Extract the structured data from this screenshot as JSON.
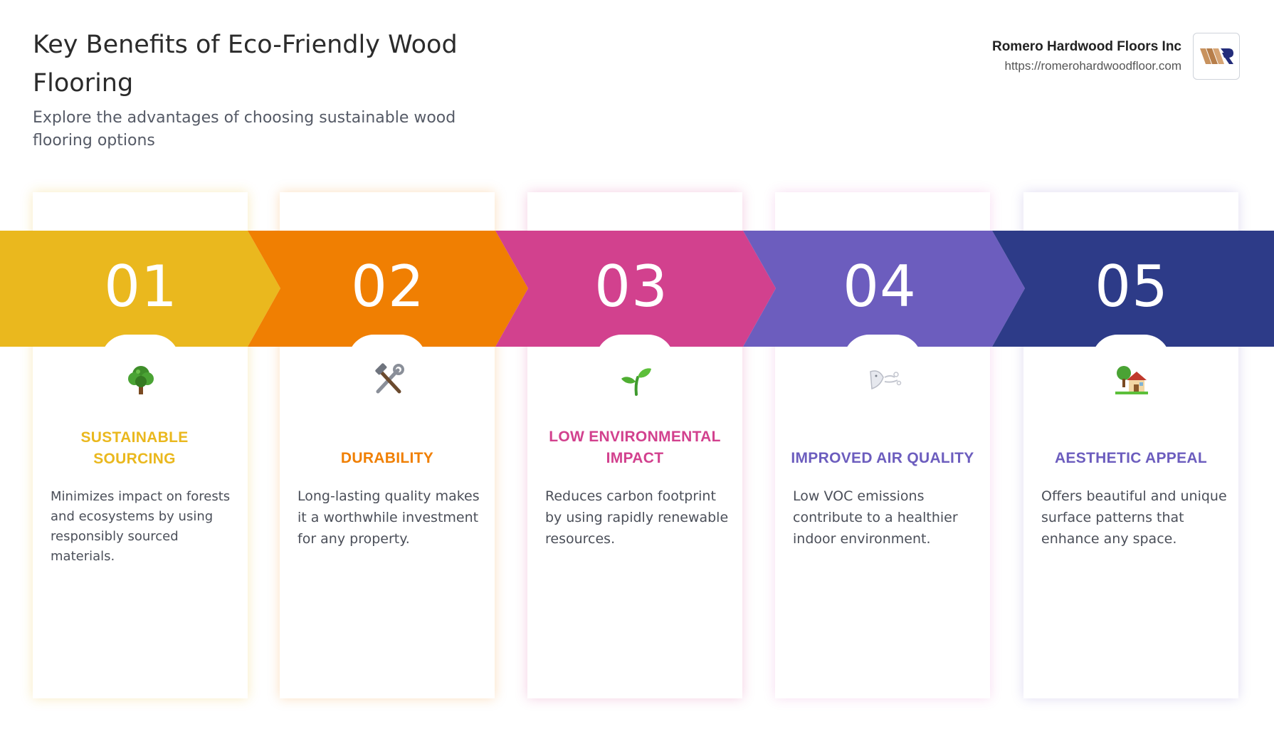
{
  "header": {
    "title": "Key Benefits of Eco-Friendly Wood Flooring",
    "subtitle": "Explore the advantages of choosing sustainable wood flooring options"
  },
  "brand": {
    "name": "Romero Hardwood Floors Inc",
    "url": "https://romerohardwoodfloor.com"
  },
  "steps": [
    {
      "number": "01",
      "title": "SUSTAINABLE SOURCING",
      "description": "Minimizes impact on forests and ecosystems by using responsibly sourced materials.",
      "icon": "tree-icon",
      "color": "#EAB81E"
    },
    {
      "number": "02",
      "title": "DURABILITY",
      "description": "Long-lasting quality makes it a worthwhile investment for any property.",
      "icon": "tools-icon",
      "color": "#F07F02"
    },
    {
      "number": "03",
      "title": "LOW ENVIRONMENTAL IMPACT",
      "description": "Reduces carbon footprint by using rapidly renewable resources.",
      "icon": "seedling-icon",
      "color": "#D2418E"
    },
    {
      "number": "04",
      "title": "IMPROVED AIR QUALITY",
      "description": "Low VOC emissions contribute to a healthier indoor environment.",
      "icon": "wind-face-icon",
      "color": "#6C5DBE"
    },
    {
      "number": "05",
      "title": "AESTHETIC APPEAL",
      "description": "Offers beautiful and unique surface patterns that enhance any space.",
      "icon": "house-garden-icon",
      "color": "#2D3B88"
    }
  ]
}
